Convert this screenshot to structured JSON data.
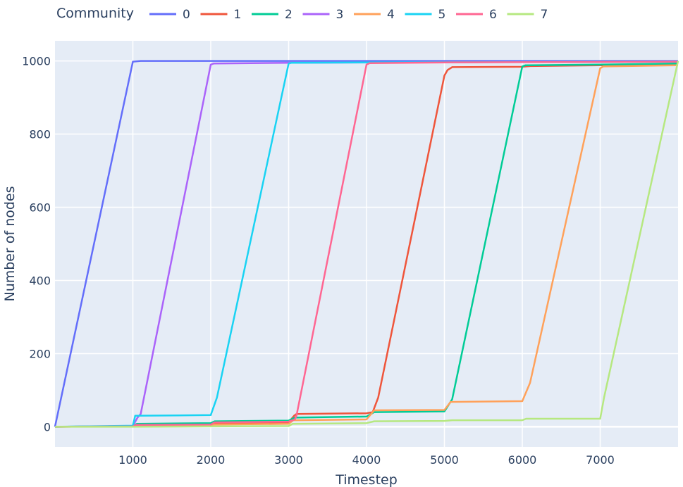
{
  "chart_data": {
    "type": "line",
    "xlabel": "Timestep",
    "ylabel": "Number of nodes",
    "xlim": [
      0,
      8000
    ],
    "ylim": [
      -55,
      1055
    ],
    "xticks": [
      1000,
      2000,
      3000,
      4000,
      5000,
      6000,
      7000
    ],
    "yticks": [
      0,
      200,
      400,
      600,
      800,
      1000
    ],
    "grid": true,
    "legend": {
      "title": "Community",
      "placement": "top-left horizontal"
    },
    "series": [
      {
        "name": "0",
        "color": "#636efa",
        "points": [
          [
            0,
            0
          ],
          [
            1000,
            998
          ],
          [
            1100,
            1000
          ],
          [
            8000,
            1000
          ]
        ]
      },
      {
        "name": "1",
        "color": "#EF553B",
        "points": [
          [
            0,
            0
          ],
          [
            1000,
            1
          ],
          [
            1010,
            4
          ],
          [
            2000,
            5
          ],
          [
            2050,
            10
          ],
          [
            3000,
            12
          ],
          [
            3070,
            30
          ],
          [
            3100,
            35
          ],
          [
            4000,
            37
          ],
          [
            4080,
            40
          ],
          [
            4150,
            80
          ],
          [
            5000,
            960
          ],
          [
            5040,
            975
          ],
          [
            5100,
            983
          ],
          [
            6000,
            984
          ],
          [
            6100,
            986
          ],
          [
            7000,
            988
          ],
          [
            8000,
            990
          ]
        ]
      },
      {
        "name": "2",
        "color": "#00cc96",
        "points": [
          [
            0,
            0
          ],
          [
            1000,
            2
          ],
          [
            1050,
            8
          ],
          [
            2000,
            10
          ],
          [
            2050,
            15
          ],
          [
            3000,
            17
          ],
          [
            3080,
            25
          ],
          [
            4000,
            28
          ],
          [
            4100,
            40
          ],
          [
            5000,
            42
          ],
          [
            5100,
            75
          ],
          [
            6000,
            985
          ],
          [
            6040,
            988
          ],
          [
            7000,
            990
          ],
          [
            8000,
            993
          ]
        ]
      },
      {
        "name": "3",
        "color": "#ab63fa",
        "points": [
          [
            0,
            0
          ],
          [
            1000,
            2
          ],
          [
            1060,
            25
          ],
          [
            1100,
            35
          ],
          [
            2000,
            990
          ],
          [
            2040,
            993
          ],
          [
            3000,
            995
          ],
          [
            8000,
            998
          ]
        ]
      },
      {
        "name": "4",
        "color": "#FFA15A",
        "points": [
          [
            0,
            0
          ],
          [
            1000,
            1
          ],
          [
            1030,
            3
          ],
          [
            2000,
            4
          ],
          [
            2040,
            6
          ],
          [
            3000,
            8
          ],
          [
            3060,
            18
          ],
          [
            4000,
            20
          ],
          [
            4100,
            45
          ],
          [
            5000,
            46
          ],
          [
            5080,
            68
          ],
          [
            6000,
            70
          ],
          [
            6100,
            120
          ],
          [
            7000,
            980
          ],
          [
            7040,
            985
          ],
          [
            8000,
            988
          ]
        ]
      },
      {
        "name": "5",
        "color": "#19d3f3",
        "points": [
          [
            0,
            0
          ],
          [
            1000,
            3
          ],
          [
            1030,
            30
          ],
          [
            2000,
            32
          ],
          [
            2080,
            80
          ],
          [
            3000,
            993
          ],
          [
            3040,
            995
          ],
          [
            4000,
            996
          ],
          [
            8000,
            998
          ]
        ]
      },
      {
        "name": "6",
        "color": "#FF6692",
        "points": [
          [
            0,
            0
          ],
          [
            1000,
            1
          ],
          [
            1040,
            5
          ],
          [
            2000,
            6
          ],
          [
            2050,
            12
          ],
          [
            3000,
            14
          ],
          [
            3080,
            20
          ],
          [
            3100,
            30
          ],
          [
            4000,
            990
          ],
          [
            4040,
            994
          ],
          [
            5000,
            996
          ],
          [
            8000,
            998
          ]
        ]
      },
      {
        "name": "7",
        "color": "#B6E880",
        "points": [
          [
            0,
            0
          ],
          [
            1000,
            0
          ],
          [
            2000,
            1
          ],
          [
            3000,
            2
          ],
          [
            3050,
            8
          ],
          [
            4000,
            10
          ],
          [
            4100,
            15
          ],
          [
            5000,
            16
          ],
          [
            5100,
            18
          ],
          [
            6000,
            18
          ],
          [
            6050,
            22
          ],
          [
            7000,
            22
          ],
          [
            7050,
            80
          ],
          [
            8000,
            1000
          ]
        ]
      }
    ]
  }
}
